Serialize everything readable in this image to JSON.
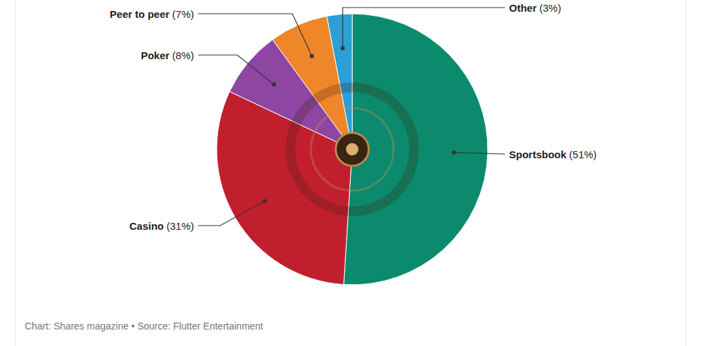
{
  "chart_data": {
    "type": "pie",
    "categories": [
      "Sportsbook",
      "Casino",
      "Poker",
      "Peer to peer",
      "Other"
    ],
    "values": [
      51,
      31,
      8,
      7,
      3
    ],
    "value_labels": [
      "(51%)",
      "(31%)",
      "(8%)",
      "(7%)",
      "(3%)"
    ],
    "colors": [
      "#0b8a6d",
      "#c21f2e",
      "#8e46a3",
      "#f0862a",
      "#2b9fd6"
    ],
    "data_labels": true,
    "source": "Chart: Shares magazine • Source: Flutter Entertainment"
  }
}
